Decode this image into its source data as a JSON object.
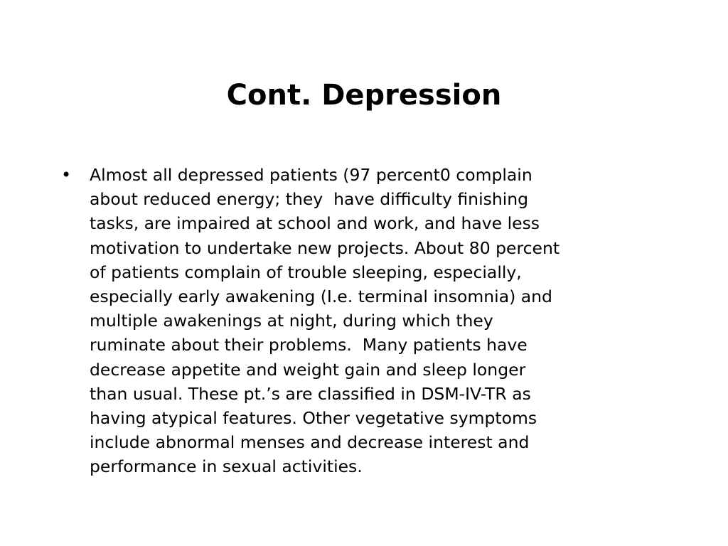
{
  "slide": {
    "title": "Cont. Depression",
    "bullet_symbol": "•",
    "bullets": [
      {
        "lines": [
          "Almost all depressed patients (97 percent0 complain",
          "about reduced energy; they  have difficulty finishing",
          "tasks, are impaired at school and work, and have less",
          "motivation to undertake new projects. About 80 percent",
          "of patients complain of trouble sleeping, especially,",
          "especially early awakening (I.e. terminal insomnia) and",
          "multiple awakenings at night, during which they",
          "ruminate about their problems.  Many patients have",
          "decrease appetite and weight gain and sleep longer",
          "than usual. These pt.’s are classified in DSM-IV-TR as",
          "having atypical features. Other vegetative symptoms",
          "include abnormal menses and decrease interest and",
          "performance in sexual activities."
        ]
      }
    ]
  }
}
